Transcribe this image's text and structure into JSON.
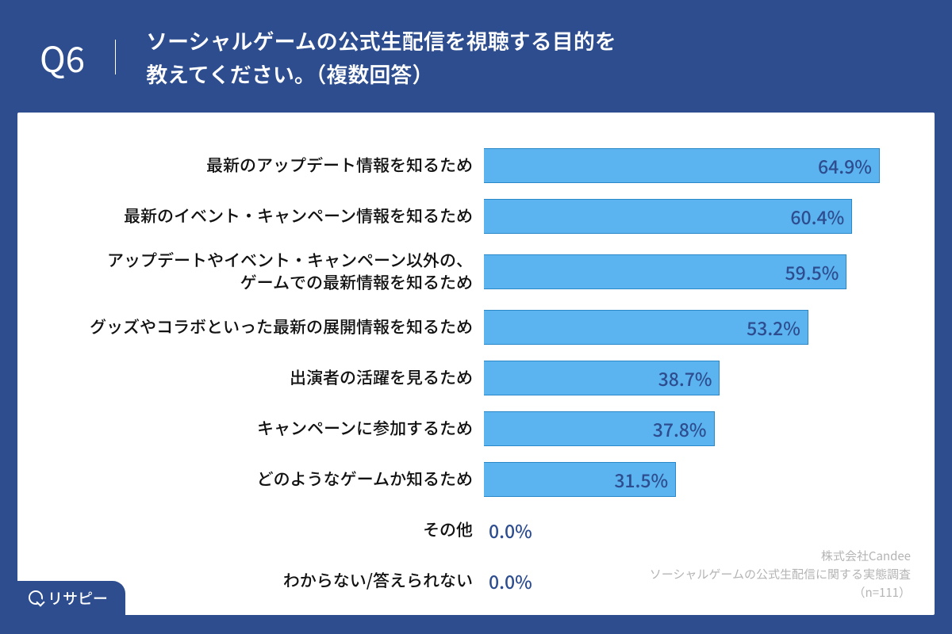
{
  "header": {
    "question_number": "Q6",
    "question_text_line1": "ソーシャルゲームの公式生配信を視聴する目的を",
    "question_text_line2": "教えてください。（複数回答）"
  },
  "chart": {
    "type": "horizontal_bar",
    "bar_color": "#5bb3ef",
    "bar_border_color": "#2a88c9",
    "value_text_color": "#2d4d8f",
    "label_fontsize": 21,
    "value_fontsize": 23,
    "background_color": "#ffffff",
    "header_bg_color": "#2d4d8f",
    "max_value": 70,
    "items": [
      {
        "label": "最新のアップデート情報を知るため",
        "value": 64.9,
        "display": "64.9%",
        "multiline": false
      },
      {
        "label": "最新のイベント・キャンペーン情報を知るため",
        "value": 60.4,
        "display": "60.4%",
        "multiline": false
      },
      {
        "label": "アップデートやイベント・キャンペーン以外の、\nゲームでの最新情報を知るため",
        "value": 59.5,
        "display": "59.5%",
        "multiline": true
      },
      {
        "label": "グッズやコラボといった最新の展開情報を知るため",
        "value": 53.2,
        "display": "53.2%",
        "multiline": false
      },
      {
        "label": "出演者の活躍を見るため",
        "value": 38.7,
        "display": "38.7%",
        "multiline": false
      },
      {
        "label": "キャンペーンに参加するため",
        "value": 37.8,
        "display": "37.8%",
        "multiline": false
      },
      {
        "label": "どのようなゲームか知るため",
        "value": 31.5,
        "display": "31.5%",
        "multiline": false
      },
      {
        "label": "その他",
        "value": 0.0,
        "display": "0.0%",
        "multiline": false
      },
      {
        "label": "わからない/答えられない",
        "value": 0.0,
        "display": "0.0%",
        "multiline": false
      }
    ]
  },
  "attribution": {
    "line1": "株式会社Candee",
    "line2": "ソーシャルゲームの公式生配信に関する実態調査",
    "line3": "（n=111）"
  },
  "brand": {
    "name": "リサピー"
  }
}
